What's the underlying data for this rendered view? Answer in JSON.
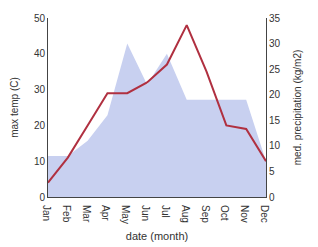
{
  "chart_data": {
    "type": "line",
    "categories": [
      "Jan",
      "Feb",
      "Mar",
      "Apr",
      "May",
      "Jun",
      "Jul",
      "Aug",
      "Sep",
      "Oct",
      "Nov",
      "Dec"
    ],
    "xlabel": "date (month)",
    "ylabel": "max temp (C)",
    "y2label": "med. precipitation (kg/m2)",
    "series": [
      {
        "type": "area",
        "axis": "y2",
        "color": "#c8d0f0",
        "values": [
          8,
          8,
          11,
          16,
          30,
          22,
          28,
          19,
          19,
          19,
          19,
          7
        ]
      },
      {
        "type": "line",
        "color": "#b03040",
        "values": [
          4,
          11,
          20,
          29,
          29,
          32,
          37,
          48,
          35,
          20,
          19,
          10
        ]
      }
    ],
    "ylim": [
      0,
      50
    ],
    "yticks": [
      0,
      10,
      20,
      30,
      40,
      50
    ],
    "y2lim": [
      0,
      35
    ],
    "y2ticks": [
      0,
      5,
      10,
      15,
      20,
      25,
      30,
      35
    ],
    "grid": false
  }
}
